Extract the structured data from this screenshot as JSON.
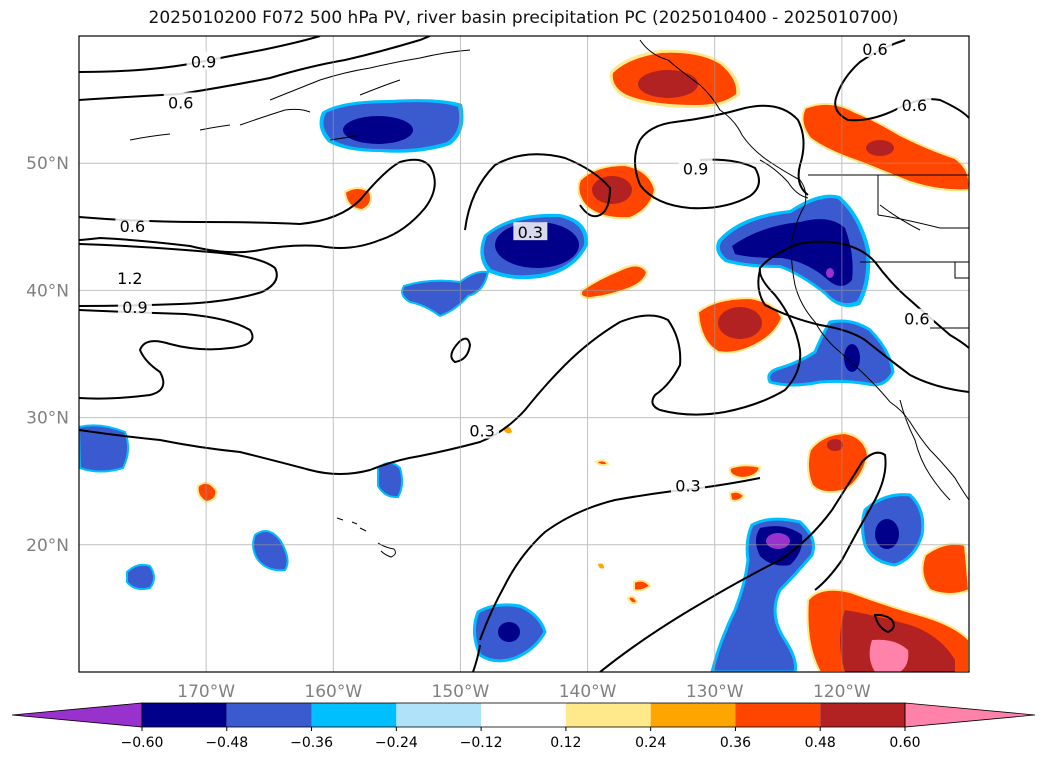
{
  "title": "2025010200 F072 500 hPa PV, river basin precipitation PC (2025010400 - 2025010700)",
  "map": {
    "projection": "PlateCarree",
    "lon_range": [
      -180,
      -110
    ],
    "lat_range": [
      10,
      60
    ],
    "gridlines": true,
    "coastlines": true,
    "lat_ticks": [
      {
        "v": 20,
        "label": "20°N"
      },
      {
        "v": 30,
        "label": "30°N"
      },
      {
        "v": 40,
        "label": "40°N"
      },
      {
        "v": 50,
        "label": "50°N"
      }
    ],
    "lon_ticks": [
      {
        "v": -170,
        "label": "170°W"
      },
      {
        "v": -160,
        "label": "160°W"
      },
      {
        "v": -150,
        "label": "150°W"
      },
      {
        "v": -140,
        "label": "140°W"
      },
      {
        "v": -130,
        "label": "130°W"
      },
      {
        "v": -120,
        "label": "120°W"
      }
    ]
  },
  "contour_labels": [
    {
      "text": "0.9",
      "lon": -170.2,
      "lat": 57.9
    },
    {
      "text": "0.6",
      "lon": -172.0,
      "lat": 54.7
    },
    {
      "text": "0.6",
      "lon": -175.8,
      "lat": 45.0
    },
    {
      "text": "1.2",
      "lon": -176.0,
      "lat": 40.9
    },
    {
      "text": "0.9",
      "lon": -175.6,
      "lat": 38.6
    },
    {
      "text": "0.3",
      "lon": -144.5,
      "lat": 44.5
    },
    {
      "text": "0.9",
      "lon": -131.5,
      "lat": 49.5
    },
    {
      "text": "0.6",
      "lon": -117.4,
      "lat": 58.9
    },
    {
      "text": "0.6",
      "lon": -114.3,
      "lat": 54.5
    },
    {
      "text": "0.6",
      "lon": -114.1,
      "lat": 37.7
    },
    {
      "text": "0.3",
      "lon": -148.3,
      "lat": 28.9
    },
    {
      "text": "0.3",
      "lon": -132.1,
      "lat": 24.6
    }
  ],
  "colorbar": {
    "ticks": [
      "−0.60",
      "−0.48",
      "−0.36",
      "−0.24",
      "−0.12",
      "0.12",
      "0.24",
      "0.36",
      "0.48",
      "0.60"
    ],
    "colors": [
      "#9932cc",
      "#00008b",
      "#3a5bcf",
      "#00bfff",
      "#b0e2fa",
      "#ffffff",
      "#ffe98a",
      "#ffa500",
      "#ff4500",
      "#b22222",
      "#ff82ab"
    ]
  }
}
